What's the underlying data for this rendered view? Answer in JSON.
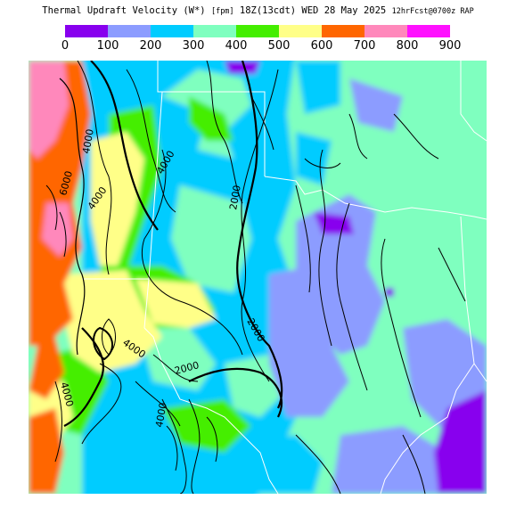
{
  "header": {
    "title": "Thermal Updraft Velocity (W*)",
    "units": "[fpm]",
    "valid_time": "18Z(13cdt) WED 28 May 2025",
    "forecast_info": "12hrFcst@0700z RAP"
  },
  "legend": {
    "colors": [
      "#8800ee",
      "#8c9cff",
      "#00ccff",
      "#7fffbf",
      "#44ee00",
      "#ffff88",
      "#ff6600",
      "#ff88bb",
      "#ff11ff"
    ],
    "labels": [
      "0",
      "100",
      "200",
      "300",
      "400",
      "500",
      "600",
      "700",
      "800",
      "900"
    ]
  },
  "map": {
    "contour_labels": [
      "6000",
      "4000",
      "4000",
      "2000",
      "2000",
      "2000",
      "4000",
      "4000",
      "4000",
      "4000"
    ]
  }
}
